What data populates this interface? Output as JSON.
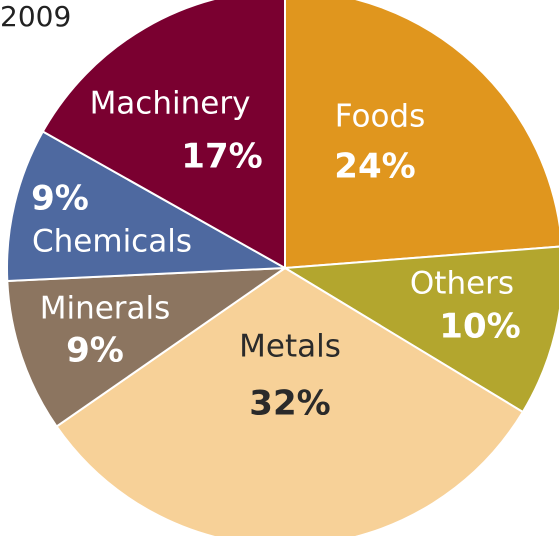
{
  "chart_data": {
    "type": "pie",
    "title": "2009",
    "categories": [
      "Foods",
      "Others",
      "Metals",
      "Minerals",
      "Chemicals",
      "Machinery"
    ],
    "values": [
      24,
      10,
      32,
      9,
      9,
      17
    ],
    "value_labels": [
      "24%",
      "10%",
      "32%",
      "9%",
      "9%",
      "17%"
    ],
    "colors": [
      "#e0961e",
      "#b3a62e",
      "#f7d198",
      "#8c7560",
      "#4e69a0",
      "#7a0030"
    ],
    "label_colors": [
      "#ffffff",
      "#ffffff",
      "#2a2a2a",
      "#ffffff",
      "#ffffff",
      "#ffffff"
    ]
  }
}
